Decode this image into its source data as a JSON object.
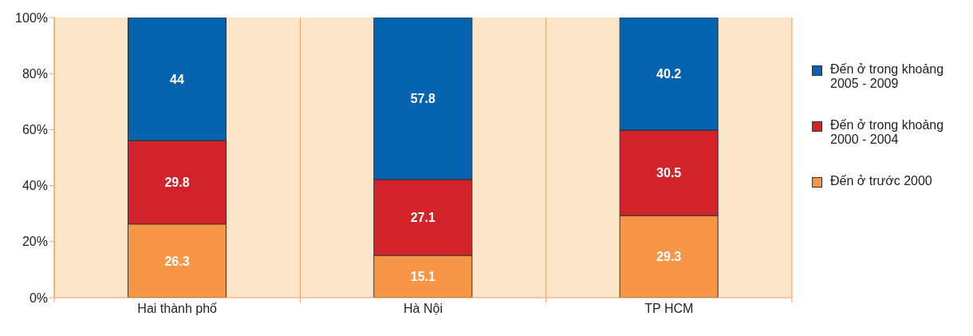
{
  "chart_data": {
    "type": "bar",
    "stacked": true,
    "categories": [
      "Hai thành phố",
      "Hà Nội",
      "TP HCM"
    ],
    "series": [
      {
        "name": "Đến ở trước 2000",
        "color": "#f79646",
        "values": [
          26.3,
          15.1,
          29.3
        ]
      },
      {
        "name": "Đến ở trong khoảng 2000 - 2004",
        "color": "#d2232a",
        "values": [
          29.8,
          27.1,
          30.5
        ]
      },
      {
        "name": "Đến ở trong khoảng 2005 - 2009",
        "color": "#0563b0",
        "values": [
          44,
          57.8,
          40.2
        ]
      }
    ],
    "ylim": [
      0,
      100
    ],
    "yticks": [
      {
        "value": 0,
        "label": "0%"
      },
      {
        "value": 20,
        "label": "20%"
      },
      {
        "value": 40,
        "label": "40%"
      },
      {
        "value": 60,
        "label": "60%"
      },
      {
        "value": 80,
        "label": "80%"
      },
      {
        "value": 100,
        "label": "100%"
      }
    ],
    "grid": "x",
    "legend": "right",
    "data_labels": true
  }
}
